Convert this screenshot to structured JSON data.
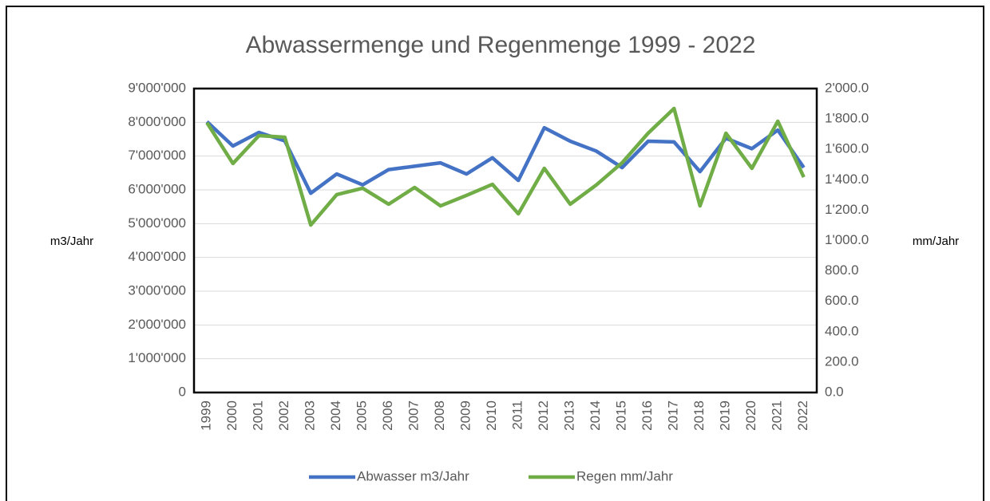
{
  "chart_data": {
    "type": "line",
    "title": "Abwassermenge und Regenmenge 1999 - 2022",
    "y_label": "m3/Jahr",
    "y2_label": "mm/Jahr",
    "categories": [
      "1999",
      "2000",
      "2001",
      "2002",
      "2003",
      "2004",
      "2005",
      "2006",
      "2007",
      "2008",
      "2009",
      "2010",
      "2011",
      "2012",
      "2013",
      "2014",
      "2015",
      "2016",
      "2017",
      "2018",
      "2019",
      "2020",
      "2021",
      "2022"
    ],
    "series": [
      {
        "name": "Abwasser m3/Jahr",
        "color": "#4472c4",
        "values": [
          8020000,
          7300000,
          7700000,
          7450000,
          5900000,
          6470000,
          6150000,
          6600000,
          6700000,
          6800000,
          6470000,
          6950000,
          6280000,
          7840000,
          7440000,
          7150000,
          6660000,
          7440000,
          7420000,
          6540000,
          7530000,
          7220000,
          7770000,
          6660000
        ]
      },
      {
        "name": "Regen mm/Jahr",
        "color": "#70ad47",
        "axis": "y2",
        "values": [
          1775,
          1507,
          1690,
          1680,
          1102,
          1302,
          1344,
          1239,
          1349,
          1228,
          1297,
          1370,
          1176,
          1475,
          1239,
          1365,
          1512,
          1706,
          1869,
          1228,
          1706,
          1475,
          1785,
          1417
        ]
      }
    ],
    "ylim": [
      0,
      9000000
    ],
    "yticks": [
      0,
      {
        "value": 1000000,
        "label": "1'000'000"
      },
      {
        "value": 2000000,
        "label": "2'000'000"
      },
      {
        "value": 3000000,
        "label": "3'000'000"
      },
      {
        "value": 4000000,
        "label": "4'000'000"
      },
      {
        "value": 5000000,
        "label": "5'000'000"
      },
      {
        "value": 6000000,
        "label": "6'000'000"
      },
      {
        "value": 7000000,
        "label": "7'000'000"
      },
      {
        "value": 8000000,
        "label": "8'000'000"
      },
      {
        "value": 9000000,
        "label": "9'000'000"
      }
    ],
    "y2lim": [
      0,
      2000
    ],
    "y2ticks": [
      {
        "value": 0,
        "label": "0.0"
      },
      {
        "value": 200,
        "label": "200.0"
      },
      {
        "value": 400,
        "label": "400.0"
      },
      {
        "value": 600,
        "label": "600.0"
      },
      {
        "value": 800,
        "label": "800.0"
      },
      {
        "value": 1000,
        "label": "1'000.0"
      },
      {
        "value": 1200,
        "label": "1'200.0"
      },
      {
        "value": 1400,
        "label": "1'400.0"
      },
      {
        "value": 1600,
        "label": "1'600.0"
      },
      {
        "value": 1800,
        "label": "1'800.0"
      },
      {
        "value": 2000,
        "label": "2'000.0"
      }
    ],
    "grid": true,
    "legend": "bottom"
  }
}
